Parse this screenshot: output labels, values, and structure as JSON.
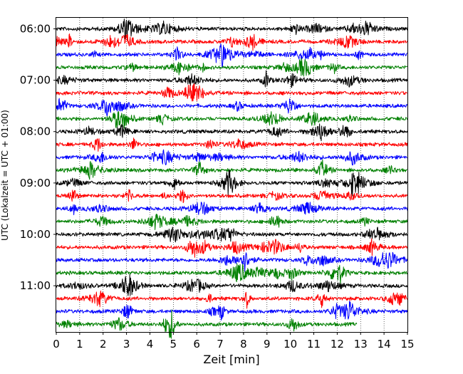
{
  "chart_data": {
    "type": "line",
    "title": "",
    "xlabel": "Zeit  [min]",
    "ylabel": "UTC (Lokalzeit = UTC + 01:00)",
    "xlim": [
      0,
      15
    ],
    "x_ticks": [
      "0",
      "1",
      "2",
      "3",
      "4",
      "5",
      "6",
      "7",
      "8",
      "9",
      "10",
      "11",
      "12",
      "13",
      "14",
      "15"
    ],
    "y_tick_labels": [
      "06:00",
      "07:00",
      "08:00",
      "09:00",
      "10:00",
      "11:00"
    ],
    "grid": "vertical dotted",
    "line_colors": [
      "#000000",
      "#ff0000",
      "#0000ff",
      "#008000"
    ],
    "traces": [
      {
        "start": "06:00",
        "end_min": 15
      },
      {
        "start": "06:15",
        "end_min": 15
      },
      {
        "start": "06:30",
        "end_min": 15
      },
      {
        "start": "06:45",
        "end_min": 15
      },
      {
        "start": "07:00",
        "end_min": 15
      },
      {
        "start": "07:15",
        "end_min": 15
      },
      {
        "start": "07:30",
        "end_min": 15
      },
      {
        "start": "07:45",
        "end_min": 15
      },
      {
        "start": "08:00",
        "end_min": 15
      },
      {
        "start": "08:15",
        "end_min": 15
      },
      {
        "start": "08:30",
        "end_min": 15
      },
      {
        "start": "08:45",
        "end_min": 15
      },
      {
        "start": "09:00",
        "end_min": 15
      },
      {
        "start": "09:15",
        "end_min": 15
      },
      {
        "start": "09:30",
        "end_min": 15
      },
      {
        "start": "09:45",
        "end_min": 15
      },
      {
        "start": "10:00",
        "end_min": 15
      },
      {
        "start": "10:15",
        "end_min": 15
      },
      {
        "start": "10:30",
        "end_min": 15
      },
      {
        "start": "10:45",
        "end_min": 15
      },
      {
        "start": "11:00",
        "end_min": 15
      },
      {
        "start": "11:15",
        "end_min": 15
      },
      {
        "start": "11:30",
        "end_min": 15
      },
      {
        "start": "11:45",
        "end_min": 12.85
      }
    ]
  }
}
